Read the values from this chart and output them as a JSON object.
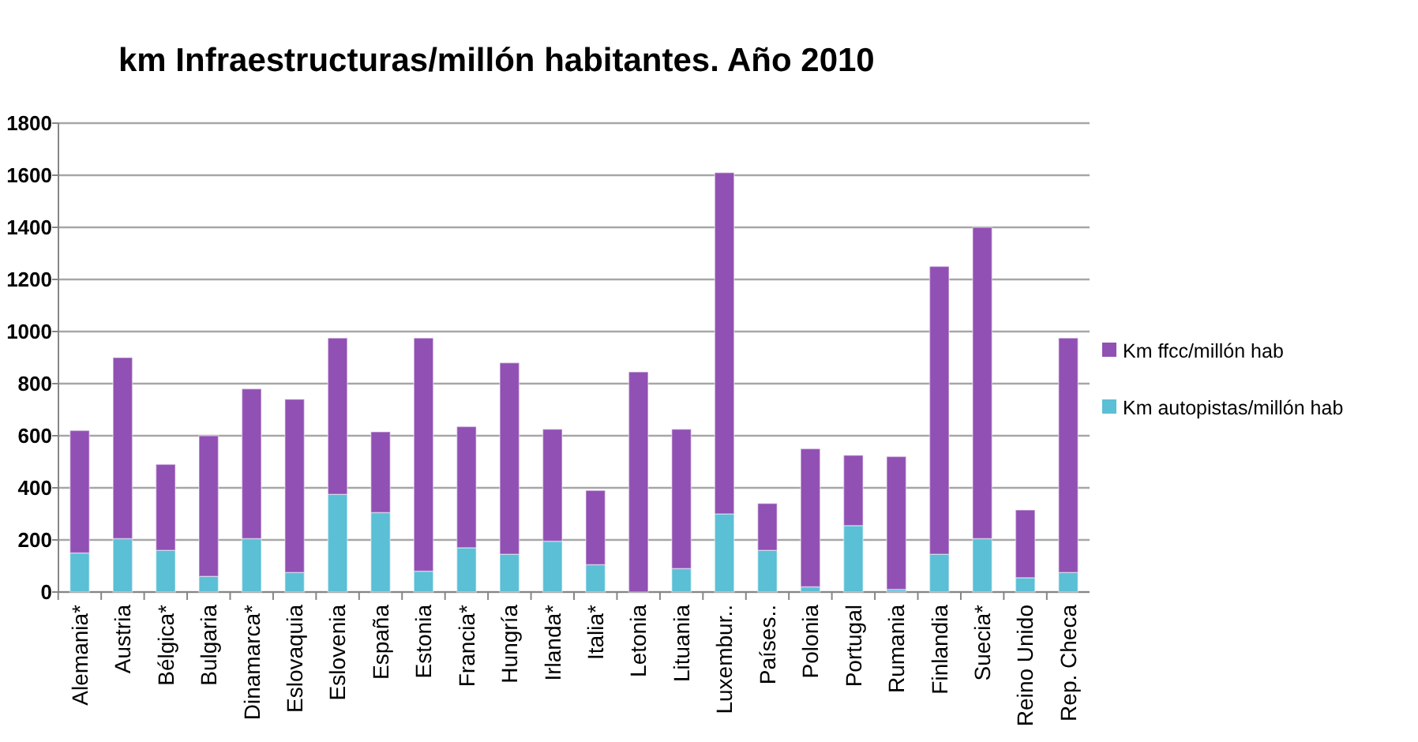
{
  "chart_data": {
    "type": "bar",
    "stacked": true,
    "title": "km Infraestructuras/millón habitantes.  Año 2010",
    "categories": [
      "Alemania*",
      "Austria",
      "Bélgica*",
      "Bulgaria",
      "Dinamarca*",
      "Eslovaquia",
      "Eslovenia",
      "España",
      "Estonia",
      "Francia*",
      "Hungría",
      "Irlanda*",
      "Italia*",
      "Letonia",
      "Lituania",
      "Luxembur..",
      "Países..",
      "Polonia",
      "Portugal",
      "Rumania",
      "Finlandia",
      "Suecia*",
      "Reino Unido",
      "Rep. Checa"
    ],
    "series": [
      {
        "name": "Km autopistas/millón hab",
        "color": "#5bbfd5",
        "values": [
          150,
          205,
          160,
          60,
          205,
          75,
          375,
          305,
          80,
          170,
          145,
          195,
          105,
          0,
          90,
          300,
          160,
          20,
          255,
          10,
          145,
          205,
          55,
          75
        ]
      },
      {
        "name": "Km ffcc/millón hab",
        "color": "#9150b3",
        "values": [
          470,
          695,
          330,
          540,
          575,
          665,
          600,
          310,
          895,
          465,
          735,
          430,
          285,
          845,
          535,
          1310,
          180,
          530,
          270,
          510,
          1105,
          1195,
          260,
          900
        ]
      }
    ],
    "ylim": [
      0,
      1800
    ],
    "yticks": [
      0,
      200,
      400,
      600,
      800,
      1000,
      1200,
      1400,
      1600,
      1800
    ],
    "grid": "y",
    "legend": "right"
  }
}
